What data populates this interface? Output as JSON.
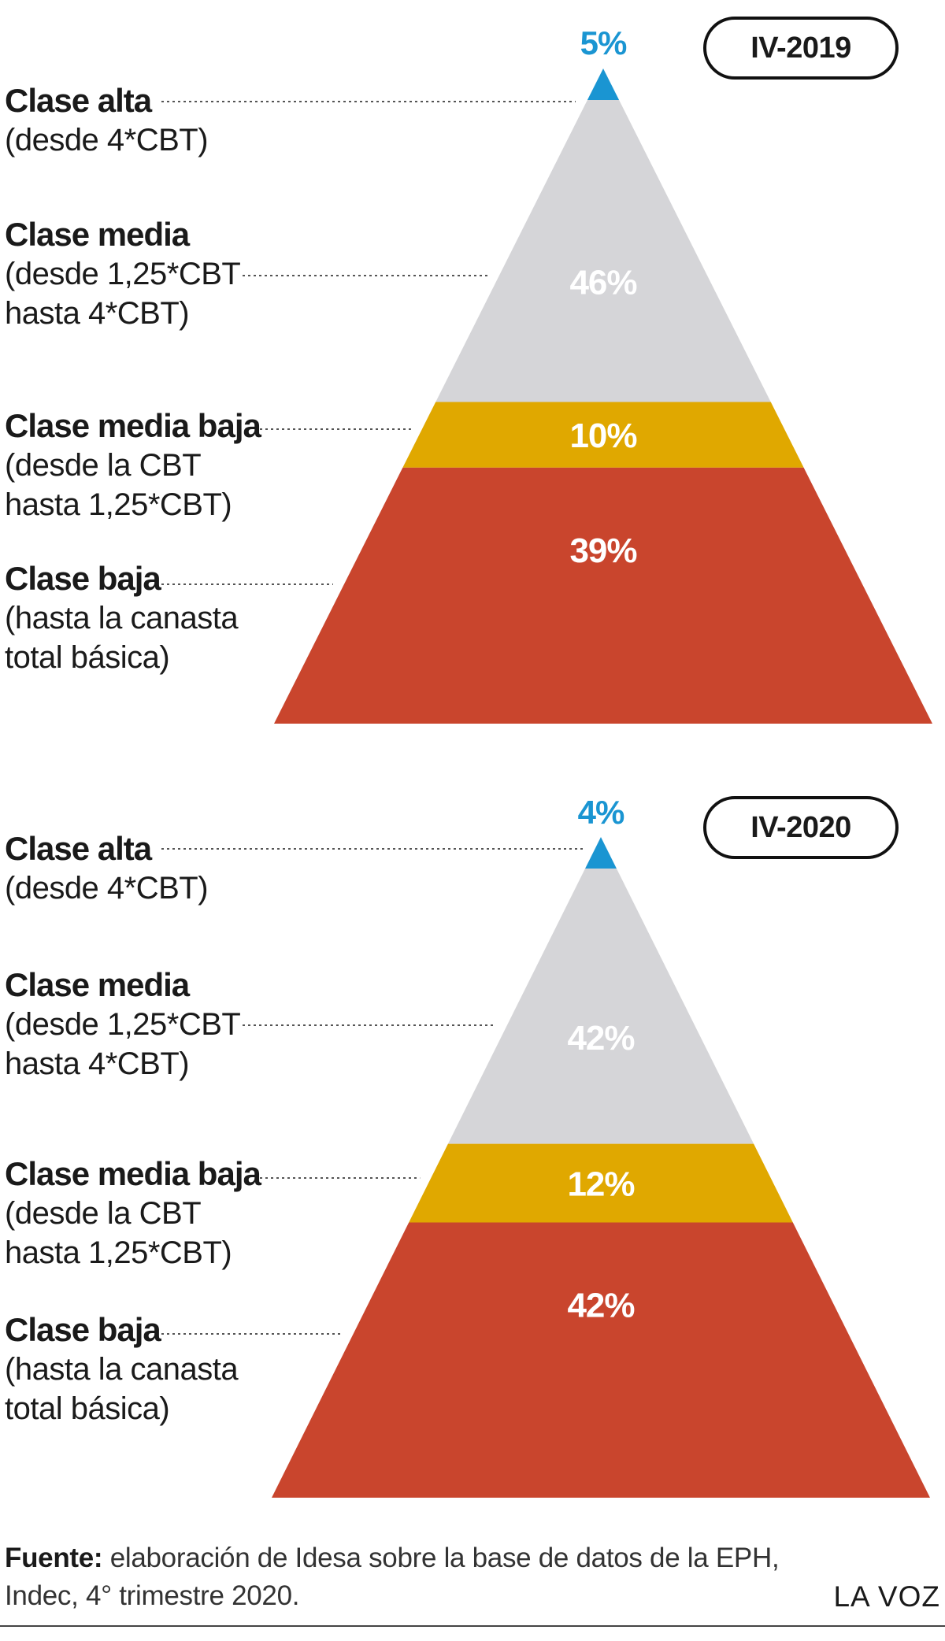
{
  "colors": {
    "alta": "#1a95d2",
    "media": "#d5d5d8",
    "media_baja": "#e0a800",
    "baja": "#c9452d",
    "leader": "#555555",
    "value_text": "#ffffff"
  },
  "chart_data": [
    {
      "type": "pyramid",
      "period": "IV-2019",
      "categories": [
        "Clase alta",
        "Clase media",
        "Clase media baja",
        "Clase baja"
      ],
      "descriptions": [
        "(desde 4*CBT)",
        "(desde 1,25*CBT\nhasta 4*CBT)",
        "(desde la CBT\nhasta 1,25*CBT)",
        "(hasta la canasta\ntotal básica)"
      ],
      "values": [
        5,
        46,
        10,
        39
      ],
      "value_labels": [
        "5%",
        "46%",
        "10%",
        "39%"
      ]
    },
    {
      "type": "pyramid",
      "period": "IV-2020",
      "categories": [
        "Clase alta",
        "Clase media",
        "Clase media baja",
        "Clase baja"
      ],
      "descriptions": [
        "(desde 4*CBT)",
        "(desde 1,25*CBT\nhasta 4*CBT)",
        "(desde la CBT\nhasta 1,25*CBT)",
        "(hasta la canasta\ntotal básica)"
      ],
      "values": [
        4,
        42,
        12,
        42
      ],
      "value_labels": [
        "4%",
        "42%",
        "12%",
        "42%"
      ]
    }
  ],
  "footer": {
    "source_label": "Fuente:",
    "source_text": " elaboración de Idesa sobre la base de datos de la EPH,\nIndec, 4° trimestre 2020.",
    "brand": "LA VOZ"
  }
}
